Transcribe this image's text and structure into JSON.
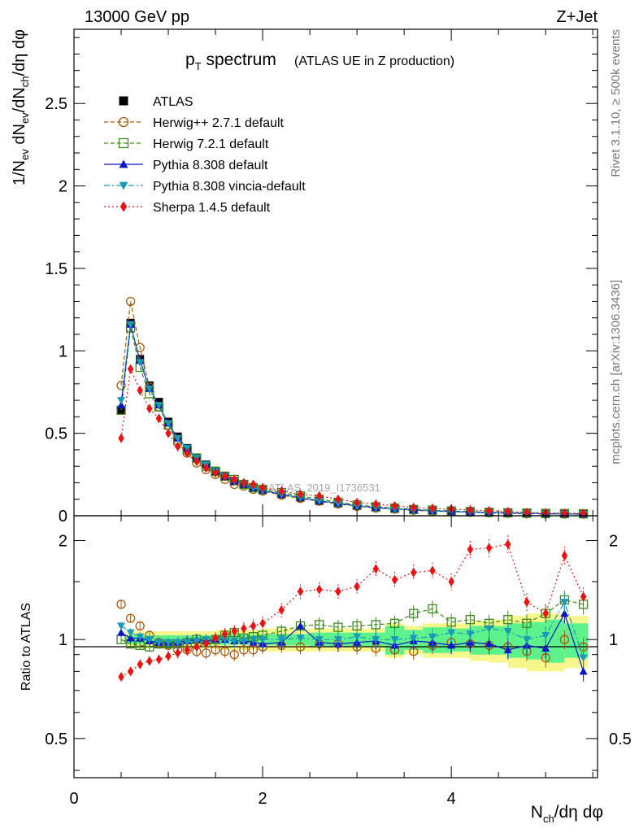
{
  "header": {
    "energy_label": "13000 GeV pp",
    "process_label": "Z+Jet"
  },
  "side_labels": {
    "rivet": "Rivet 3.1.10, ≥ 500k events",
    "mcplots": "mcplots.cern.ch [arXiv:1306.3436]"
  },
  "watermark": "ATLAS_2019_I1736531",
  "colors": {
    "atlas": "#000000",
    "herwigpp": "#a65a0a",
    "herwig7": "#3c8a1e",
    "pythia": "#0a14c8",
    "vincia": "#1a9ab8",
    "sherpa": "#ee1111",
    "band_inner": "#5ef28c",
    "band_outer": "#f6f68c"
  },
  "chart_data": [
    {
      "type": "scatter",
      "title": "p_T spectrum",
      "title_main": "p",
      "title_sub": "T",
      "title_rest": " spectrum",
      "subtitle": "(ATLAS UE in Z production)",
      "ylabel": "1/N_ev dN_ev/dN_ch/dη dφ",
      "xlim": [
        0,
        5.55
      ],
      "ylim": [
        0,
        2.95
      ],
      "yticks": [
        0,
        0.5,
        1,
        1.5,
        2,
        2.5
      ],
      "ytick_labels": [
        "0",
        "0.5",
        "1",
        "1.5",
        "2",
        "2.5"
      ],
      "legend_position": "top-left",
      "series": [
        {
          "name": "ATLAS",
          "key": "atlas",
          "marker": "square-filled",
          "line": "none",
          "x": [
            0.5,
            0.6,
            0.7,
            0.8,
            0.9,
            1.0,
            1.1,
            1.2,
            1.3,
            1.4,
            1.5,
            1.6,
            1.7,
            1.8,
            1.9,
            2.0,
            2.2,
            2.4,
            2.6,
            2.8,
            3.0,
            3.2,
            3.4,
            3.6,
            3.8,
            4.0,
            4.2,
            4.4,
            4.6,
            4.8,
            5.0,
            5.2,
            5.4
          ],
          "y": [
            0.64,
            1.17,
            0.95,
            0.79,
            0.69,
            0.57,
            0.48,
            0.41,
            0.35,
            0.31,
            0.27,
            0.24,
            0.21,
            0.19,
            0.17,
            0.155,
            0.13,
            0.11,
            0.09,
            0.075,
            0.06,
            0.05,
            0.042,
            0.035,
            0.03,
            0.026,
            0.022,
            0.019,
            0.016,
            0.014,
            0.012,
            0.011,
            0.01
          ]
        },
        {
          "name": "Herwig++ 2.7.1 default",
          "key": "herwigpp",
          "marker": "circle-open",
          "line": "dashed",
          "x": [
            0.5,
            0.6,
            0.7,
            0.8,
            0.9,
            1.0,
            1.1,
            1.2,
            1.3,
            1.4,
            1.5,
            1.6,
            1.7,
            1.8,
            1.9,
            2.0,
            2.2,
            2.4,
            2.6,
            2.8,
            3.0,
            3.2,
            3.4,
            3.6,
            3.8,
            4.0,
            4.2,
            4.4,
            4.6,
            4.8,
            5.0,
            5.2,
            5.4
          ],
          "y": [
            0.79,
            1.3,
            1.02,
            0.78,
            0.66,
            0.55,
            0.44,
            0.38,
            0.32,
            0.28,
            0.25,
            0.22,
            0.19,
            0.18,
            0.16,
            0.15,
            0.125,
            0.105,
            0.088,
            0.072,
            0.057,
            0.047,
            0.04,
            0.033,
            0.028,
            0.025,
            0.021,
            0.018,
            0.015,
            0.012,
            0.011,
            0.01,
            0.009
          ]
        },
        {
          "name": "Herwig 7.2.1 default",
          "key": "herwig7",
          "marker": "square-open",
          "line": "dashed",
          "x": [
            0.5,
            0.6,
            0.7,
            0.8,
            0.9,
            1.0,
            1.1,
            1.2,
            1.3,
            1.4,
            1.5,
            1.6,
            1.7,
            1.8,
            1.9,
            2.0,
            2.2,
            2.4,
            2.6,
            2.8,
            3.0,
            3.2,
            3.4,
            3.6,
            3.8,
            4.0,
            4.2,
            4.4,
            4.6,
            4.8,
            5.0,
            5.2,
            5.4
          ],
          "y": [
            0.64,
            1.14,
            0.9,
            0.74,
            0.66,
            0.55,
            0.46,
            0.4,
            0.35,
            0.3,
            0.27,
            0.24,
            0.22,
            0.19,
            0.17,
            0.16,
            0.14,
            0.12,
            0.1,
            0.082,
            0.066,
            0.055,
            0.046,
            0.038,
            0.034,
            0.029,
            0.025,
            0.021,
            0.018,
            0.016,
            0.014,
            0.013,
            0.012
          ]
        },
        {
          "name": "Pythia 8.308 default",
          "key": "pythia",
          "marker": "triangle-up",
          "line": "solid",
          "x": [
            0.5,
            0.6,
            0.7,
            0.8,
            0.9,
            1.0,
            1.1,
            1.2,
            1.3,
            1.4,
            1.5,
            1.6,
            1.7,
            1.8,
            1.9,
            2.0,
            2.2,
            2.4,
            2.6,
            2.8,
            3.0,
            3.2,
            3.4,
            3.6,
            3.8,
            4.0,
            4.2,
            4.4,
            4.6,
            4.8,
            5.0,
            5.2,
            5.4
          ],
          "y": [
            0.67,
            1.16,
            0.94,
            0.77,
            0.67,
            0.56,
            0.47,
            0.41,
            0.35,
            0.31,
            0.27,
            0.24,
            0.21,
            0.19,
            0.17,
            0.155,
            0.13,
            0.11,
            0.09,
            0.076,
            0.06,
            0.05,
            0.042,
            0.035,
            0.03,
            0.026,
            0.022,
            0.019,
            0.016,
            0.014,
            0.012,
            0.011,
            0.01
          ]
        },
        {
          "name": "Pythia 8.308 vincia-default",
          "key": "vincia",
          "marker": "triangle-down",
          "line": "dashdot",
          "x": [
            0.5,
            0.6,
            0.7,
            0.8,
            0.9,
            1.0,
            1.1,
            1.2,
            1.3,
            1.4,
            1.5,
            1.6,
            1.7,
            1.8,
            1.9,
            2.0,
            2.2,
            2.4,
            2.6,
            2.8,
            3.0,
            3.2,
            3.4,
            3.6,
            3.8,
            4.0,
            4.2,
            4.4,
            4.6,
            4.8,
            5.0,
            5.2,
            5.4
          ],
          "y": [
            0.7,
            1.16,
            0.93,
            0.77,
            0.67,
            0.56,
            0.47,
            0.41,
            0.35,
            0.31,
            0.27,
            0.24,
            0.21,
            0.19,
            0.17,
            0.155,
            0.13,
            0.11,
            0.09,
            0.076,
            0.06,
            0.05,
            0.042,
            0.035,
            0.03,
            0.026,
            0.022,
            0.019,
            0.016,
            0.014,
            0.012,
            0.011,
            0.01
          ]
        },
        {
          "name": "Sherpa 1.4.5 default",
          "key": "sherpa",
          "marker": "diamond",
          "line": "dotted",
          "x": [
            0.5,
            0.6,
            0.7,
            0.8,
            0.9,
            1.0,
            1.1,
            1.2,
            1.3,
            1.4,
            1.5,
            1.6,
            1.7,
            1.8,
            1.9,
            2.0,
            2.2,
            2.4,
            2.6,
            2.8,
            3.0,
            3.2,
            3.4,
            3.6,
            3.8,
            4.0,
            4.2,
            4.4,
            4.6,
            4.8,
            5.0,
            5.2,
            5.4
          ],
          "y": [
            0.47,
            0.89,
            0.76,
            0.65,
            0.59,
            0.5,
            0.42,
            0.38,
            0.33,
            0.29,
            0.26,
            0.24,
            0.22,
            0.2,
            0.19,
            0.17,
            0.15,
            0.13,
            0.12,
            0.1,
            0.08,
            0.07,
            0.06,
            0.05,
            0.045,
            0.04,
            0.035,
            0.03,
            0.025,
            0.02,
            0.018,
            0.016,
            0.014
          ]
        }
      ]
    },
    {
      "type": "scatter",
      "title": "",
      "ylabel": "Ratio to ATLAS",
      "xlabel": "N_ch/dη dφ",
      "xlabel_main": "N",
      "xlabel_sub": "ch",
      "xlabel_rest": "/dη dφ",
      "xlim": [
        0,
        5.55
      ],
      "ylim": [
        0.38,
        2.38
      ],
      "yscale": "log",
      "xticks": [
        0,
        2,
        4
      ],
      "xtick_labels": [
        "0",
        "2",
        "4"
      ],
      "yticks": [
        0.5,
        1,
        2
      ],
      "ytick_labels": [
        "0.5",
        "1",
        "2"
      ],
      "band": {
        "x_edges": [
          0.55,
          1.0,
          1.5,
          2.0,
          2.5,
          3.0,
          3.3,
          3.5,
          3.7,
          4.0,
          4.2,
          4.4,
          4.6,
          4.8,
          5.0,
          5.2,
          5.45
        ],
        "inner_half_width": [
          0.03,
          0.03,
          0.035,
          0.04,
          0.05,
          0.05,
          0.1,
          0.07,
          0.09,
          0.08,
          0.1,
          0.1,
          0.12,
          0.13,
          0.15,
          0.12
        ],
        "outer_half_width": [
          0.06,
          0.06,
          0.07,
          0.08,
          0.08,
          0.08,
          0.12,
          0.1,
          0.12,
          0.12,
          0.14,
          0.15,
          0.18,
          0.2,
          0.2,
          0.18
        ]
      },
      "series": [
        {
          "name": "Herwig++ 2.7.1 default",
          "key": "herwigpp",
          "marker": "circle-open",
          "line": "none",
          "x": [
            0.5,
            0.6,
            0.7,
            0.8,
            0.9,
            1.0,
            1.1,
            1.2,
            1.3,
            1.4,
            1.5,
            1.6,
            1.7,
            1.8,
            1.9,
            2.0,
            2.2,
            2.4,
            2.6,
            2.8,
            3.0,
            3.2,
            3.4,
            3.6,
            3.8,
            4.0,
            4.2,
            4.4,
            4.6,
            4.8,
            5.0,
            5.2,
            5.4
          ],
          "y": [
            1.28,
            1.16,
            1.1,
            1.03,
            0.98,
            0.96,
            0.93,
            0.93,
            0.92,
            0.91,
            0.93,
            0.92,
            0.9,
            0.93,
            0.93,
            0.95,
            0.96,
            0.95,
            0.97,
            0.97,
            0.95,
            0.94,
            0.93,
            0.92,
            0.96,
            0.98,
            0.97,
            0.96,
            0.95,
            0.92,
            0.88,
            1.0,
            0.95
          ]
        },
        {
          "name": "Herwig 7.2.1 default",
          "key": "herwig7",
          "marker": "square-open",
          "line": "dashed",
          "x": [
            0.5,
            0.6,
            0.7,
            0.8,
            0.9,
            1.0,
            1.1,
            1.2,
            1.3,
            1.4,
            1.5,
            1.6,
            1.7,
            1.8,
            1.9,
            2.0,
            2.2,
            2.4,
            2.6,
            2.8,
            3.0,
            3.2,
            3.4,
            3.6,
            3.8,
            4.0,
            4.2,
            4.4,
            4.6,
            4.8,
            5.0,
            5.2,
            5.4
          ],
          "y": [
            1.0,
            0.97,
            0.96,
            0.95,
            0.97,
            0.97,
            0.97,
            0.98,
            1.0,
            0.98,
            1.0,
            1.03,
            1.05,
            1.01,
            1.02,
            1.03,
            1.06,
            1.1,
            1.11,
            1.09,
            1.1,
            1.11,
            1.12,
            1.2,
            1.24,
            1.13,
            1.15,
            1.12,
            1.15,
            1.12,
            1.2,
            1.32,
            1.28
          ]
        },
        {
          "name": "Pythia 8.308 default",
          "key": "pythia",
          "marker": "triangle-up",
          "line": "solid",
          "x": [
            0.5,
            0.6,
            0.7,
            0.8,
            0.9,
            1.0,
            1.1,
            1.2,
            1.3,
            1.4,
            1.5,
            1.6,
            1.7,
            1.8,
            1.9,
            2.0,
            2.2,
            2.4,
            2.6,
            2.8,
            3.0,
            3.2,
            3.4,
            3.6,
            3.8,
            4.0,
            4.2,
            4.4,
            4.6,
            4.8,
            5.0,
            5.2,
            5.4
          ],
          "y": [
            1.05,
            1.01,
            1.01,
            0.99,
            0.98,
            0.98,
            0.98,
            0.99,
            1.0,
            0.99,
            1.0,
            1.0,
            0.99,
            0.99,
            0.98,
            0.97,
            0.98,
            1.1,
            0.98,
            0.97,
            0.98,
            0.99,
            0.96,
            0.99,
            0.98,
            0.96,
            0.98,
            0.97,
            0.93,
            0.96,
            0.94,
            1.2,
            0.8
          ]
        },
        {
          "name": "Pythia 8.308 vincia-default",
          "key": "vincia",
          "marker": "triangle-down",
          "line": "dashdot",
          "x": [
            0.5,
            0.6,
            0.7,
            0.8,
            0.9,
            1.0,
            1.1,
            1.2,
            1.3,
            1.4,
            1.5,
            1.6,
            1.7,
            1.8,
            1.9,
            2.0,
            2.2,
            2.4,
            2.6,
            2.8,
            3.0,
            3.2,
            3.4,
            3.6,
            3.8,
            4.0,
            4.2,
            4.4,
            4.6,
            4.8,
            5.0,
            5.2,
            5.4
          ],
          "y": [
            1.1,
            1.05,
            1.02,
            1.0,
            0.98,
            0.98,
            0.98,
            0.98,
            0.99,
            1.0,
            1.0,
            1.0,
            0.99,
            0.99,
            1.0,
            1.0,
            1.0,
            1.01,
            1.0,
            1.0,
            1.02,
            1.0,
            1.0,
            1.01,
            1.02,
            1.05,
            1.04,
            1.08,
            1.06,
            1.0,
            1.03,
            1.3,
            0.88
          ]
        },
        {
          "name": "Sherpa 1.4.5 default",
          "key": "sherpa",
          "marker": "diamond",
          "line": "dotted",
          "x": [
            0.5,
            0.6,
            0.7,
            0.8,
            0.9,
            1.0,
            1.1,
            1.2,
            1.3,
            1.4,
            1.5,
            1.6,
            1.7,
            1.8,
            1.9,
            2.0,
            2.2,
            2.4,
            2.6,
            2.8,
            3.0,
            3.2,
            3.4,
            3.6,
            3.8,
            4.0,
            4.2,
            4.4,
            4.6,
            4.8,
            5.0,
            5.2,
            5.4
          ],
          "y": [
            0.77,
            0.8,
            0.84,
            0.86,
            0.87,
            0.89,
            0.91,
            0.93,
            0.95,
            0.97,
            1.01,
            1.04,
            1.06,
            1.08,
            1.1,
            1.12,
            1.23,
            1.4,
            1.42,
            1.4,
            1.45,
            1.64,
            1.52,
            1.6,
            1.62,
            1.5,
            1.88,
            1.9,
            1.95,
            1.3,
            1.2,
            1.8,
            1.35
          ]
        }
      ]
    }
  ]
}
